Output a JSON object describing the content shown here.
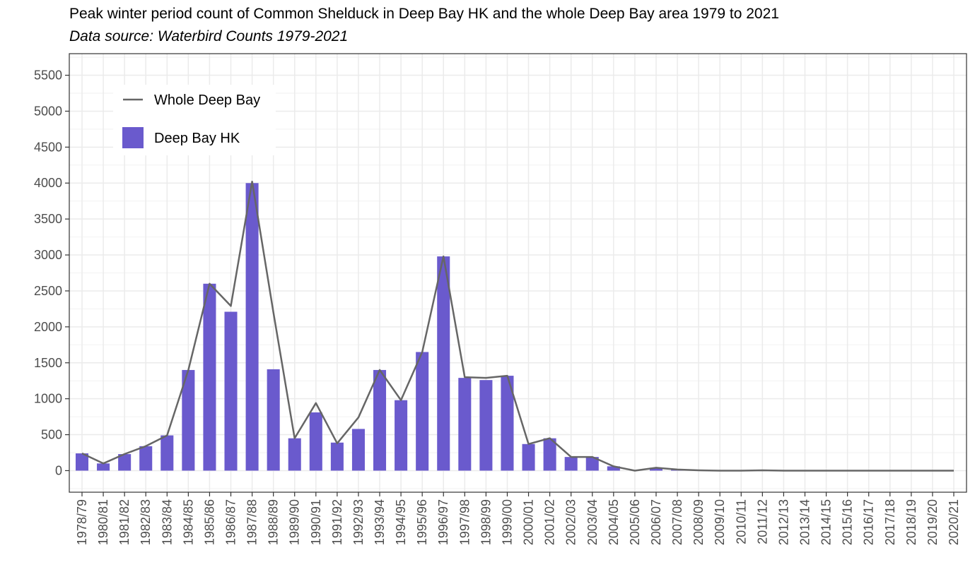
{
  "title": "Peak winter period count of Common Shelduck in Deep Bay HK and the whole Deep Bay area 1979 to 2021",
  "subtitle": "Data source: Waterbird Counts 1979-2021",
  "chart_data": {
    "type": "bar",
    "categories": [
      "1978/79",
      "1980/81",
      "1981/82",
      "1982/83",
      "1983/84",
      "1984/85",
      "1985/86",
      "1986/87",
      "1987/88",
      "1988/89",
      "1989/90",
      "1990/91",
      "1991/92",
      "1992/93",
      "1993/94",
      "1994/95",
      "1995/96",
      "1996/97",
      "1997/98",
      "1998/99",
      "1999/00",
      "2000/01",
      "2001/02",
      "2002/03",
      "2003/04",
      "2004/05",
      "2005/06",
      "2006/07",
      "2007/08",
      "2008/09",
      "2009/10",
      "2010/11",
      "2011/12",
      "2012/13",
      "2013/14",
      "2014/15",
      "2015/16",
      "2016/17",
      "2017/18",
      "2018/19",
      "2019/20",
      "2020/21"
    ],
    "series": [
      {
        "name": "Deep Bay HK",
        "type": "bar",
        "color": "#6a5acd",
        "values": [
          240,
          100,
          230,
          340,
          490,
          1400,
          2600,
          2210,
          4000,
          1410,
          450,
          810,
          390,
          580,
          1400,
          980,
          1650,
          2980,
          1290,
          1260,
          1320,
          370,
          450,
          190,
          190,
          60,
          0,
          40,
          10,
          5,
          0,
          0,
          5,
          0,
          0,
          0,
          0,
          0,
          0,
          0,
          0,
          0
        ]
      },
      {
        "name": "Whole Deep Bay",
        "type": "line",
        "color": "#666666",
        "values": [
          240,
          100,
          230,
          340,
          490,
          1400,
          2600,
          2290,
          4020,
          2200,
          450,
          940,
          380,
          740,
          1400,
          980,
          1650,
          2980,
          1300,
          1290,
          1320,
          370,
          450,
          190,
          190,
          60,
          0,
          40,
          15,
          5,
          0,
          0,
          5,
          0,
          0,
          0,
          0,
          0,
          0,
          0,
          0,
          0
        ]
      }
    ],
    "ylim": [
      -300,
      5800
    ],
    "yticks": [
      0,
      500,
      1000,
      1500,
      2000,
      2500,
      3000,
      3500,
      4000,
      4500,
      5000,
      5500
    ],
    "grid": true,
    "legend_position": "top-left",
    "xlabel": "",
    "ylabel": ""
  }
}
